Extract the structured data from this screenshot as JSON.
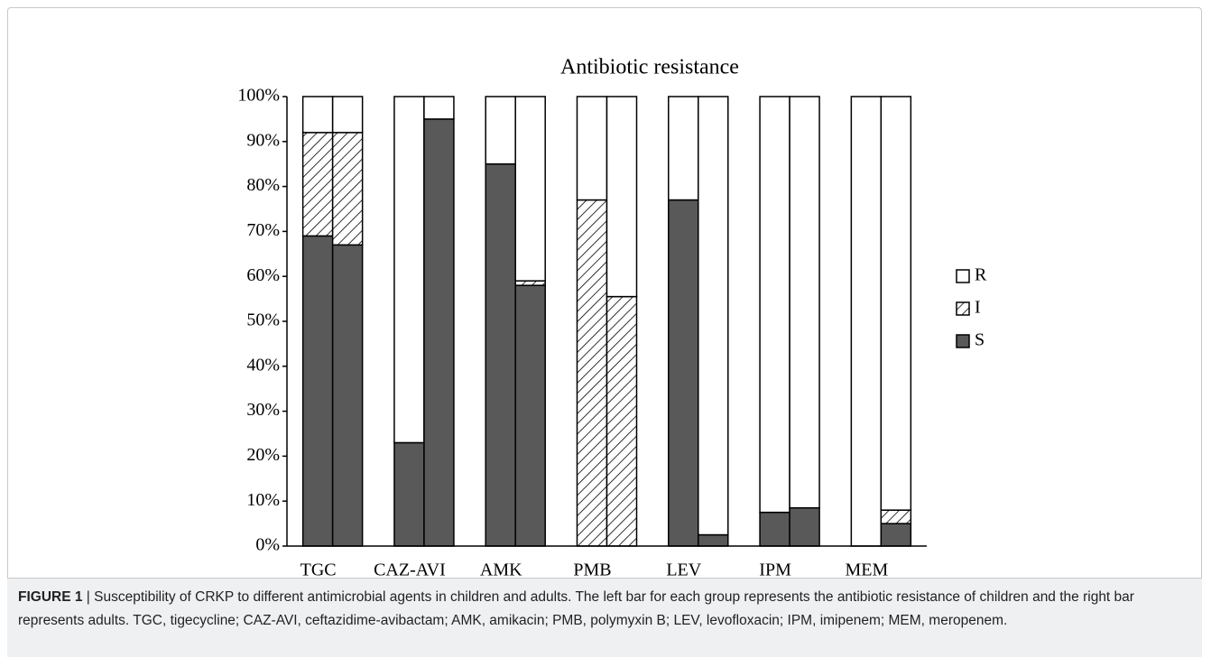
{
  "chart_data": {
    "type": "bar",
    "stacked": true,
    "title": "Antibiotic resistance",
    "categories": [
      "TGC",
      "CAZ-AVI",
      "AMK",
      "PMB",
      "LEV",
      "IPM",
      "MEM"
    ],
    "series": [
      {
        "name": "S",
        "color": "#595959",
        "values": [
          [
            69,
            67
          ],
          [
            23,
            95
          ],
          [
            85,
            58
          ],
          [
            0,
            0
          ],
          [
            77,
            2.5
          ],
          [
            7.5,
            8.5
          ],
          [
            0,
            5
          ]
        ]
      },
      {
        "name": "I",
        "color": "#ffffff",
        "pattern": "hatch",
        "values": [
          [
            23,
            25
          ],
          [
            0,
            0
          ],
          [
            0,
            1
          ],
          [
            77,
            55.5
          ],
          [
            0,
            0
          ],
          [
            0,
            0
          ],
          [
            0,
            3
          ]
        ]
      },
      {
        "name": "R",
        "color": "#ffffff",
        "values": [
          [
            8,
            8
          ],
          [
            77,
            5
          ],
          [
            15,
            41
          ],
          [
            23,
            44.5
          ],
          [
            23,
            97.5
          ],
          [
            92.5,
            91.5
          ],
          [
            100,
            92
          ]
        ]
      }
    ],
    "ylim": [
      0,
      100
    ],
    "yticks": [
      {
        "value": 0,
        "label": "0%"
      },
      {
        "value": 10,
        "label": "10%"
      },
      {
        "value": 20,
        "label": "20%"
      },
      {
        "value": 30,
        "label": "30%"
      },
      {
        "value": 40,
        "label": "40%"
      },
      {
        "value": 50,
        "label": "50%"
      },
      {
        "value": 60,
        "label": "60%"
      },
      {
        "value": 70,
        "label": "70%"
      },
      {
        "value": 80,
        "label": "80%"
      },
      {
        "value": 90,
        "label": "90%"
      },
      {
        "value": 100,
        "label": "100%"
      }
    ],
    "grid": false,
    "legend": "right"
  },
  "caption": {
    "label": "FIGURE 1",
    "text": "| Susceptibility of CRKP to different antimicrobial agents in children and adults. The left bar for each group represents the antibiotic resistance of children and the right bar represents adults. TGC, tigecycline; CAZ-AVI, ceftazidime-avibactam; AMK, amikacin; PMB, polymyxin B; LEV, levofloxacin; IPM, imipenem; MEM, meropenem."
  }
}
